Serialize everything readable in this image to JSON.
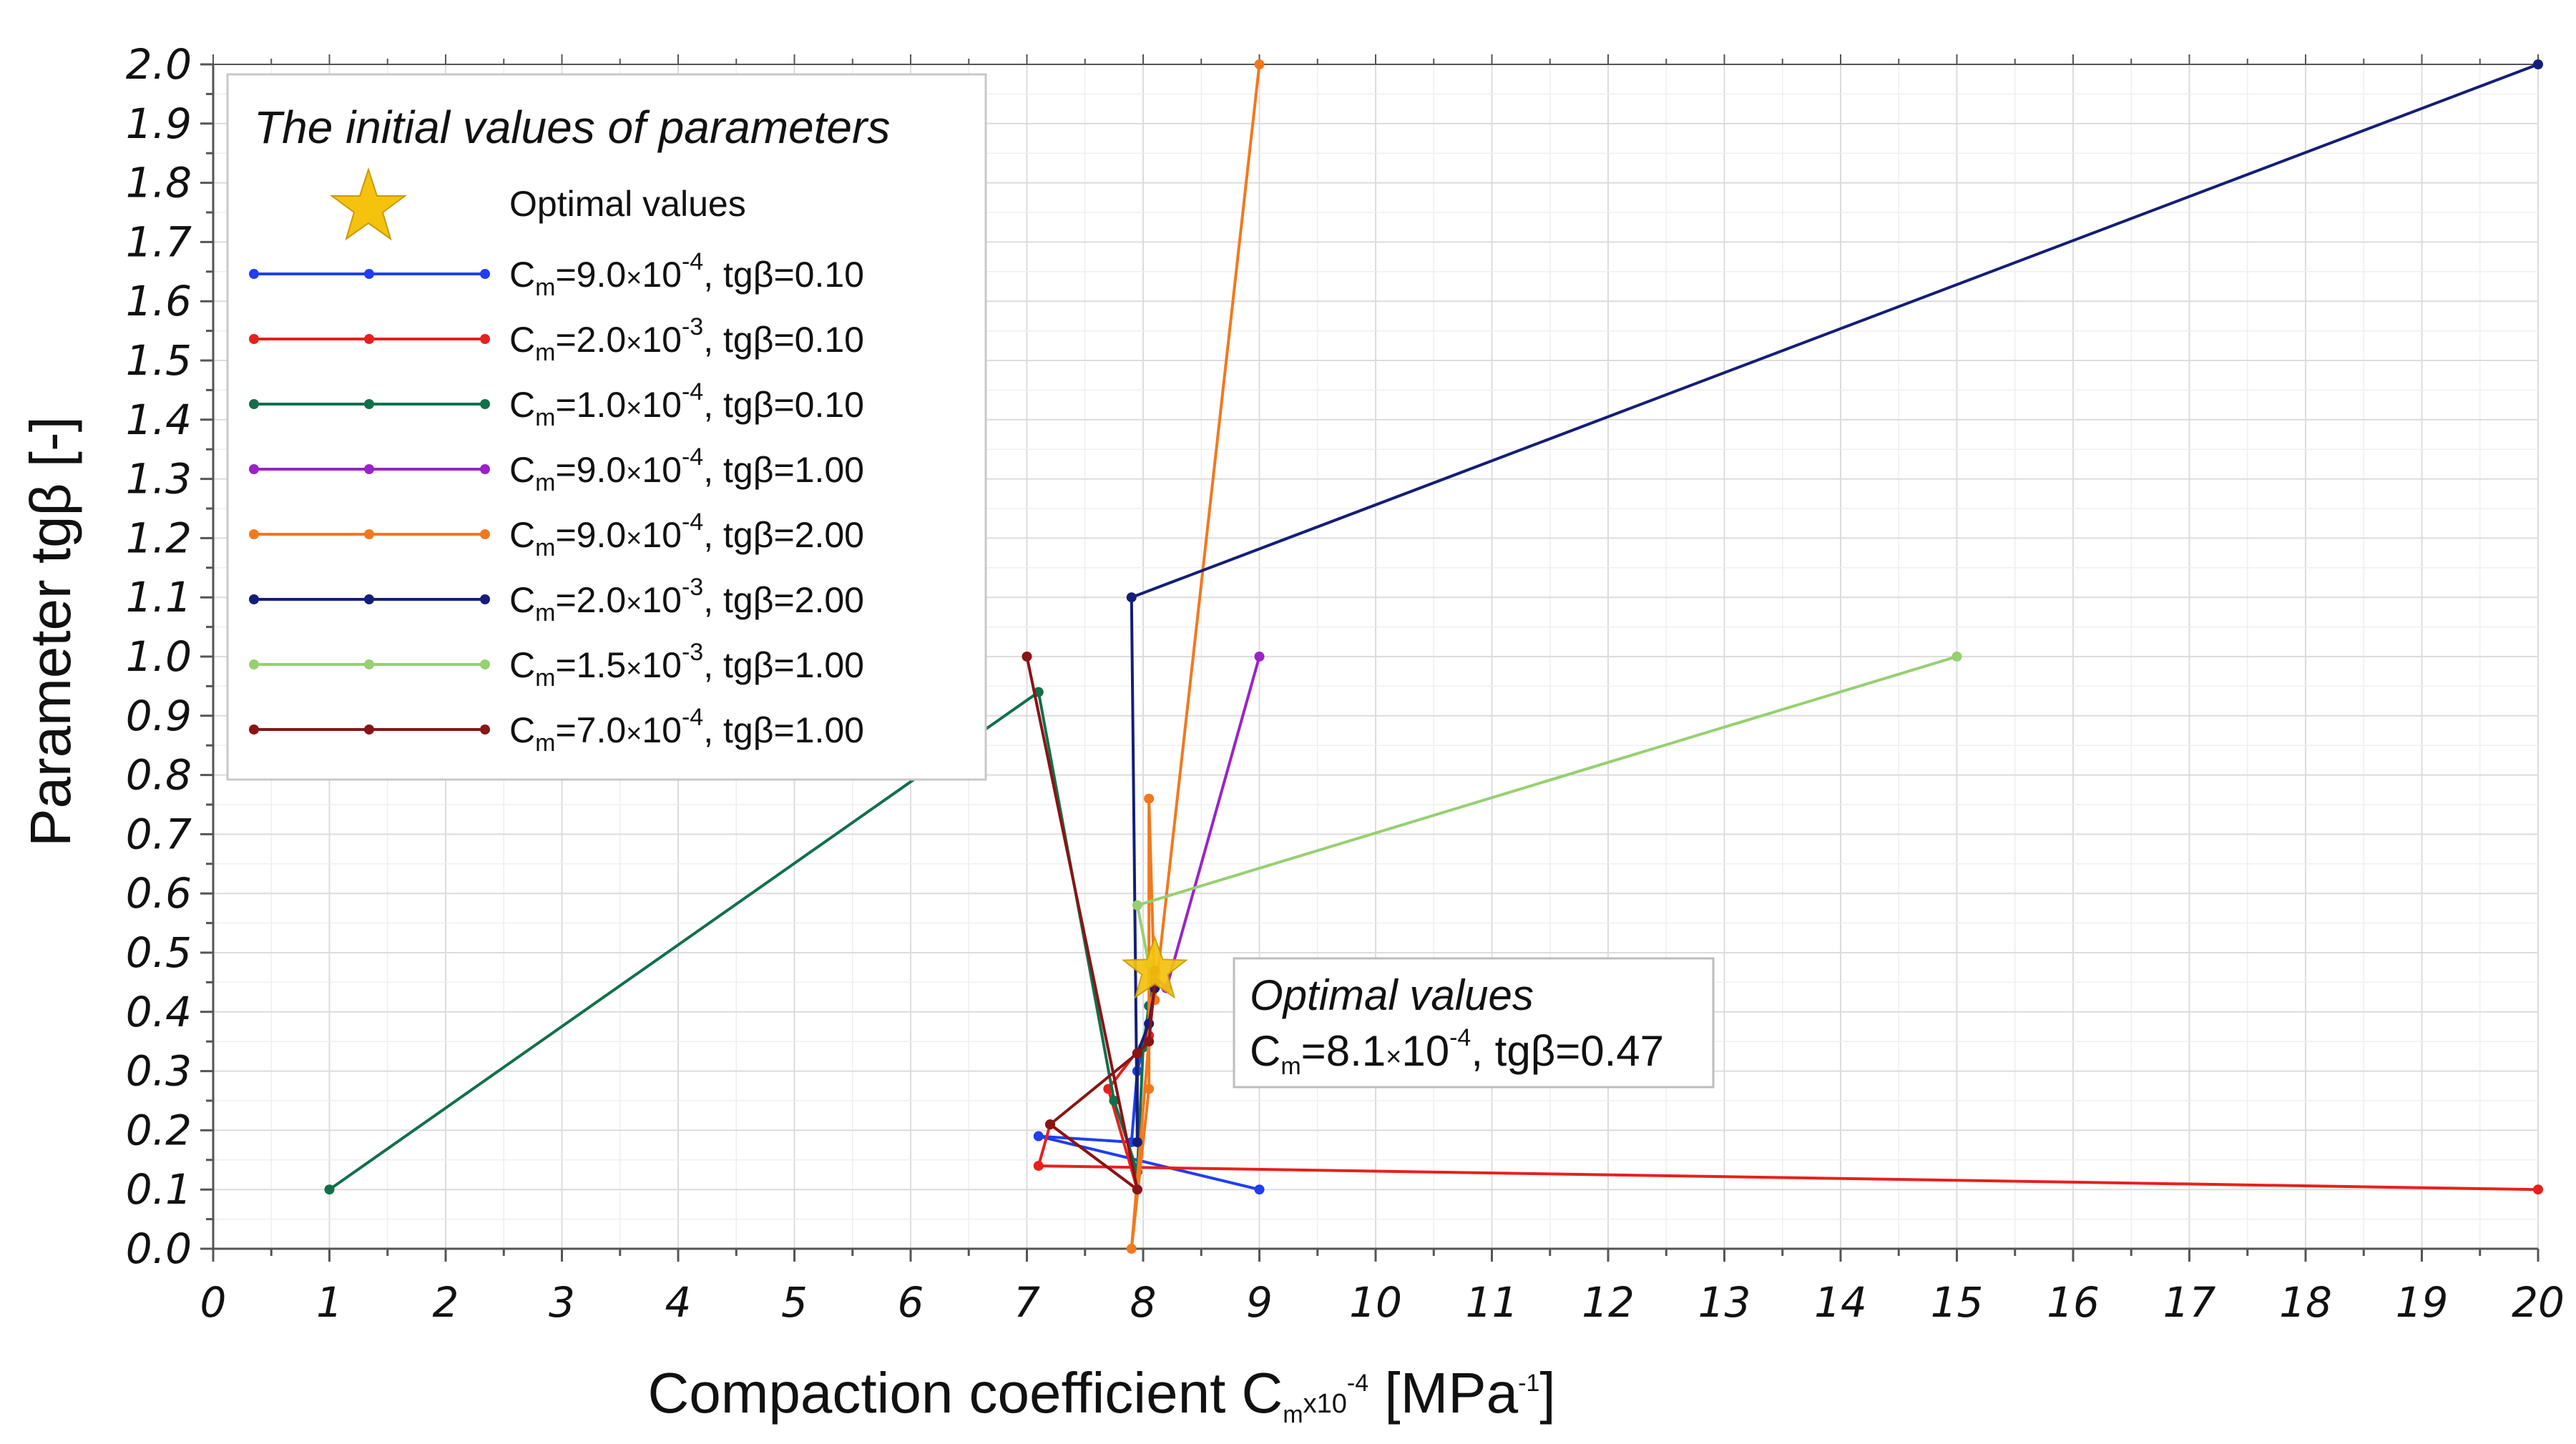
{
  "chart_data": {
    "type": "line",
    "title": "",
    "xlabel": {
      "prefix": "Compaction coefficient C",
      "sub": "m",
      "mid": "x10",
      "sup": "-4",
      "unit": " [MPa",
      "unit_sup": "-1",
      "end": "]"
    },
    "ylabel": "Parameter tgβ [-]",
    "xlim": [
      0,
      20
    ],
    "ylim": [
      0,
      2.0
    ],
    "x_ticks": [
      "0",
      "1",
      "2",
      "3",
      "4",
      "5",
      "6",
      "7",
      "8",
      "9",
      "10",
      "11",
      "12",
      "13",
      "14",
      "15",
      "16",
      "17",
      "18",
      "19",
      "20"
    ],
    "y_ticks": [
      "0.0",
      "0.1",
      "0.2",
      "0.3",
      "0.4",
      "0.5",
      "0.6",
      "0.7",
      "0.8",
      "0.9",
      "1.0",
      "1.1",
      "1.2",
      "1.3",
      "1.4",
      "1.5",
      "1.6",
      "1.7",
      "1.8",
      "1.9",
      "2.0"
    ],
    "grid": true,
    "legend": {
      "title": "The initial values of parameters",
      "position": "top-left",
      "optimal_label": "Optimal values"
    },
    "series": [
      {
        "name": "Cm=9.0×10-4, tgβ=0.10",
        "cm_base": "9.0",
        "cm_exp": "-4",
        "tgb": "tgβ=0.10",
        "color": "#1f3ff0",
        "points": [
          [
            9,
            0.1
          ],
          [
            7.1,
            0.19
          ],
          [
            7.9,
            0.18
          ],
          [
            7.95,
            0.3
          ],
          [
            8.05,
            0.38
          ],
          [
            8.1,
            0.45
          ],
          [
            8.1,
            0.47
          ]
        ]
      },
      {
        "name": "Cm=2.0×10-3, tgβ=0.10",
        "cm_base": "2.0",
        "cm_exp": "-3",
        "tgb": "tgβ=0.10",
        "color": "#e8201c",
        "points": [
          [
            20,
            0.1
          ],
          [
            7.1,
            0.14
          ],
          [
            7.2,
            0.21
          ],
          [
            7.95,
            0.1
          ],
          [
            7.7,
            0.27
          ],
          [
            8.05,
            0.36
          ],
          [
            8.1,
            0.45
          ],
          [
            8.1,
            0.47
          ]
        ]
      },
      {
        "name": "Cm=1.0×10-4, tgβ=0.10",
        "cm_base": "1.0",
        "cm_exp": "-4",
        "tgb": "tgβ=0.10",
        "color": "#11704a",
        "points": [
          [
            1,
            0.1
          ],
          [
            7.1,
            0.94
          ],
          [
            7.75,
            0.25
          ],
          [
            7.95,
            0.13
          ],
          [
            8.0,
            0.34
          ],
          [
            8.05,
            0.41
          ],
          [
            8.1,
            0.47
          ]
        ]
      },
      {
        "name": "Cm=9.0×10-4, tgβ=1.00",
        "cm_base": "9.0",
        "cm_exp": "-4",
        "tgb": "tgβ=1.00",
        "color": "#9a22c8",
        "points": [
          [
            9,
            1.0
          ],
          [
            8.2,
            0.44
          ],
          [
            8.1,
            0.46
          ],
          [
            8.1,
            0.47
          ]
        ]
      },
      {
        "name": "Cm=9.0×10-4, tgβ=2.00",
        "cm_base": "9.0",
        "cm_exp": "-4",
        "tgb": "tgβ=2.00",
        "color": "#f2781e",
        "points": [
          [
            9,
            2.0
          ],
          [
            8.1,
            0.42
          ],
          [
            8.05,
            0.76
          ],
          [
            8.05,
            0.27
          ],
          [
            7.9,
            0.0
          ],
          [
            8.1,
            0.47
          ]
        ]
      },
      {
        "name": "Cm=2.0×10-3, tgβ=2.00",
        "cm_base": "2.0",
        "cm_exp": "-3",
        "tgb": "tgβ=2.00",
        "color": "#141e78",
        "points": [
          [
            20,
            2.0
          ],
          [
            7.9,
            1.1
          ],
          [
            7.95,
            0.18
          ],
          [
            7.95,
            0.33
          ],
          [
            8.05,
            0.38
          ],
          [
            8.1,
            0.44
          ],
          [
            8.1,
            0.47
          ]
        ]
      },
      {
        "name": "Cm=1.5×10-3, tgβ=1.00",
        "cm_base": "1.5",
        "cm_exp": "-3",
        "tgb": "tgβ=1.00",
        "color": "#96d070",
        "points": [
          [
            15,
            1.0
          ],
          [
            7.95,
            0.58
          ],
          [
            8.05,
            0.48
          ],
          [
            8.1,
            0.47
          ]
        ]
      },
      {
        "name": "Cm=7.0×10-4, tgβ=1.00",
        "cm_base": "7.0",
        "cm_exp": "-4",
        "tgb": "tgβ=1.00",
        "color": "#8a1414",
        "points": [
          [
            7,
            1.0
          ],
          [
            7.95,
            0.1
          ],
          [
            7.2,
            0.21
          ],
          [
            7.95,
            0.33
          ],
          [
            8.05,
            0.35
          ],
          [
            8.1,
            0.45
          ],
          [
            8.1,
            0.47
          ]
        ]
      }
    ],
    "optimal_point": {
      "x": 8.1,
      "y": 0.47,
      "color": "#f5c20e"
    },
    "annotation": {
      "title": "Optimal values",
      "text_prefix": "C",
      "text_sub": "m",
      "text_mid": "=8.1",
      "text_small": "×",
      "text_mid2": "10",
      "text_sup": "-4",
      "text_end": ", tgβ=0.47"
    }
  }
}
